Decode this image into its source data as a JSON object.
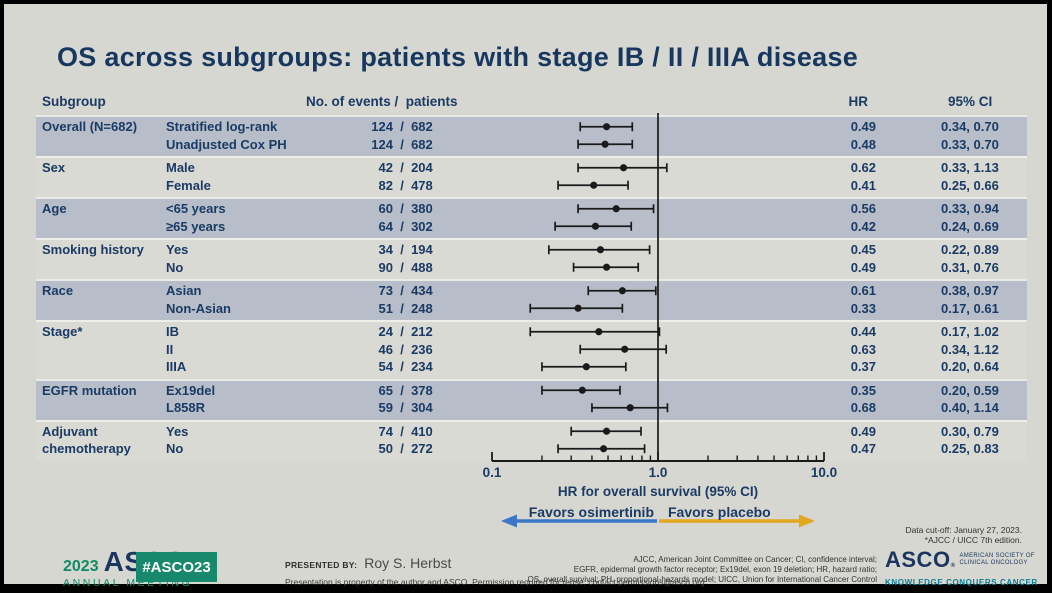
{
  "slide": {
    "title": "OS across subgroups: patients with stage IB / II / IIIA disease"
  },
  "table_headers": {
    "subgroup": "Subgroup",
    "events": "No. of events /  patients",
    "hr": "HR",
    "ci": "95% CI"
  },
  "chart_data": {
    "type": "forest",
    "x_scale": "log",
    "xlim": [
      0.1,
      10.0
    ],
    "x_ticks": [
      0.1,
      1.0,
      10.0
    ],
    "x_tick_labels": [
      "0.1",
      "1.0",
      "10.0"
    ],
    "reference_line": 1.0,
    "xlabel": "HR for overall survival (95% CI)",
    "favors_left": "Favors osimertinib",
    "favors_right": "Favors placebo",
    "groups": [
      {
        "label": "Overall (N=682)",
        "rows": [
          {
            "name": "Stratified log-rank",
            "events": "124",
            "patients": "682",
            "hr": 0.49,
            "lo": 0.34,
            "hi": 0.7,
            "hr_text": "0.49",
            "ci_text": "0.34, 0.70"
          },
          {
            "name": "Unadjusted Cox PH",
            "events": "124",
            "patients": "682",
            "hr": 0.48,
            "lo": 0.33,
            "hi": 0.7,
            "hr_text": "0.48",
            "ci_text": "0.33, 0.70"
          }
        ]
      },
      {
        "label": "Sex",
        "rows": [
          {
            "name": "Male",
            "events": "42",
            "patients": "204",
            "hr": 0.62,
            "lo": 0.33,
            "hi": 1.13,
            "hr_text": "0.62",
            "ci_text": "0.33, 1.13"
          },
          {
            "name": "Female",
            "events": "82",
            "patients": "478",
            "hr": 0.41,
            "lo": 0.25,
            "hi": 0.66,
            "hr_text": "0.41",
            "ci_text": "0.25, 0.66"
          }
        ]
      },
      {
        "label": "Age",
        "rows": [
          {
            "name": "<65 years",
            "events": "60",
            "patients": "380",
            "hr": 0.56,
            "lo": 0.33,
            "hi": 0.94,
            "hr_text": "0.56",
            "ci_text": "0.33, 0.94"
          },
          {
            "name": "≥65 years",
            "events": "64",
            "patients": "302",
            "hr": 0.42,
            "lo": 0.24,
            "hi": 0.69,
            "hr_text": "0.42",
            "ci_text": "0.24, 0.69"
          }
        ]
      },
      {
        "label": "Smoking history",
        "rows": [
          {
            "name": "Yes",
            "events": "34",
            "patients": "194",
            "hr": 0.45,
            "lo": 0.22,
            "hi": 0.89,
            "hr_text": "0.45",
            "ci_text": "0.22, 0.89"
          },
          {
            "name": "No",
            "events": "90",
            "patients": "488",
            "hr": 0.49,
            "lo": 0.31,
            "hi": 0.76,
            "hr_text": "0.49",
            "ci_text": "0.31, 0.76"
          }
        ]
      },
      {
        "label": "Race",
        "rows": [
          {
            "name": "Asian",
            "events": "73",
            "patients": "434",
            "hr": 0.61,
            "lo": 0.38,
            "hi": 0.97,
            "hr_text": "0.61",
            "ci_text": "0.38, 0.97"
          },
          {
            "name": "Non-Asian",
            "events": "51",
            "patients": "248",
            "hr": 0.33,
            "lo": 0.17,
            "hi": 0.61,
            "hr_text": "0.33",
            "ci_text": "0.17, 0.61"
          }
        ]
      },
      {
        "label": "Stage*",
        "rows": [
          {
            "name": "IB",
            "events": "24",
            "patients": "212",
            "hr": 0.44,
            "lo": 0.17,
            "hi": 1.02,
            "hr_text": "0.44",
            "ci_text": "0.17, 1.02"
          },
          {
            "name": "II",
            "events": "46",
            "patients": "236",
            "hr": 0.63,
            "lo": 0.34,
            "hi": 1.12,
            "hr_text": "0.63",
            "ci_text": "0.34, 1.12"
          },
          {
            "name": "IIIA",
            "events": "54",
            "patients": "234",
            "hr": 0.37,
            "lo": 0.2,
            "hi": 0.64,
            "hr_text": "0.37",
            "ci_text": "0.20, 0.64"
          }
        ]
      },
      {
        "label": "EGFR mutation",
        "rows": [
          {
            "name": "Ex19del",
            "events": "65",
            "patients": "378",
            "hr": 0.35,
            "lo": 0.2,
            "hi": 0.59,
            "hr_text": "0.35",
            "ci_text": "0.20, 0.59"
          },
          {
            "name": "L858R",
            "events": "59",
            "patients": "304",
            "hr": 0.68,
            "lo": 0.4,
            "hi": 1.14,
            "hr_text": "0.68",
            "ci_text": "0.40, 1.14"
          }
        ]
      },
      {
        "label": "Adjuvant chemotherapy",
        "rows": [
          {
            "name": "Yes",
            "events": "74",
            "patients": "410",
            "hr": 0.49,
            "lo": 0.3,
            "hi": 0.79,
            "hr_text": "0.49",
            "ci_text": "0.30, 0.79"
          },
          {
            "name": "No",
            "events": "50",
            "patients": "272",
            "hr": 0.47,
            "lo": 0.25,
            "hi": 0.83,
            "hr_text": "0.47",
            "ci_text": "0.25, 0.83"
          }
        ]
      }
    ]
  },
  "notes": {
    "data_cutoff": "Data cut-off: January 27, 2023.",
    "staging": "*AJCC / UICC 7th edition."
  },
  "footer": {
    "logo_year": "2023",
    "logo_asco": "ASCO",
    "logo_meeting": "ANNUAL MEETING",
    "hashtag": "#ASCO23",
    "presented_by_label": "PRESENTED BY:",
    "presenter": "Roy S. Herbst",
    "disclaimer": "Presentation is property of the author and ASCO. Permission required for reuse; contact permissions@asco.org",
    "abbreviations": [
      "AJCC, American Joint Committee on Cancer; CI, confidence interval;",
      "EGFR, epidermal growth factor receptor; Ex19del, exon 19 deletion; HR, hazard ratio;",
      "OS, overall survival; PH, proportional-hazards model; UICC, Union for International Cancer Control"
    ],
    "asco_org_name": "ASCO",
    "asco_org_line1": "AMERICAN SOCIETY OF",
    "asco_org_line2": "CLINICAL ONCOLOGY",
    "asco_org_tagline": "KNOWLEDGE CONQUERS CANCER"
  },
  "colors": {
    "navy": "#1b3a64",
    "band_dark": "#b7bec9",
    "band_light": "#d9dad4",
    "plot_stroke": "#1a1a1a",
    "favors_blue": "#3b76c8",
    "favors_yellow": "#e2a71d",
    "asco_green": "#128a68",
    "asco_teal": "#0a7f95"
  }
}
